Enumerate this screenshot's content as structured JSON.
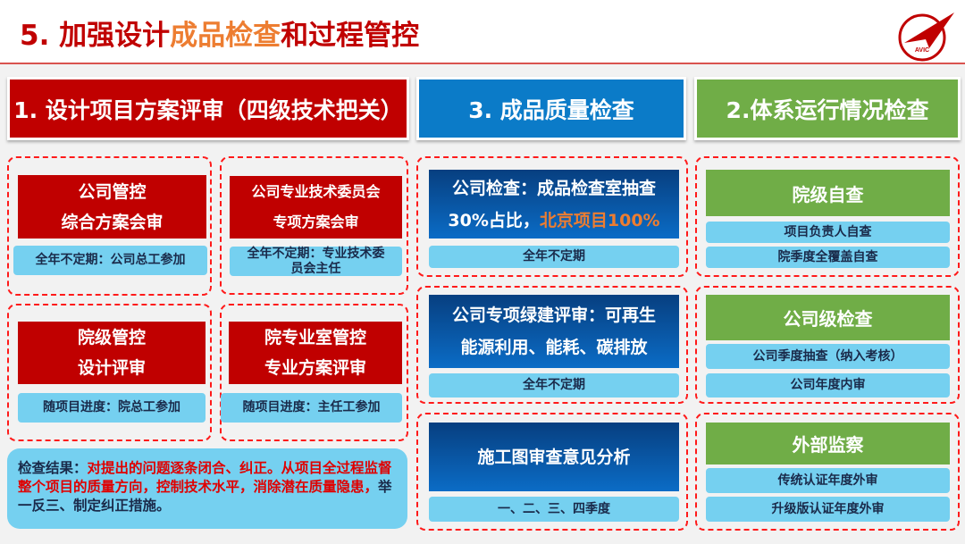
{
  "header": {
    "title_prefix": "5. 加强设计",
    "title_highlight": "成品检查",
    "title_suffix": "和过程管控",
    "logo_text": "AVIC"
  },
  "columns": [
    {
      "title": "1. 设计项目方案评审（四级技术把关）",
      "color": "#c00000"
    },
    {
      "title": "3. 成品质量检查",
      "color": "#0b7bc8"
    },
    {
      "title": "2.体系运行情况检查",
      "color": "#70ad47"
    }
  ],
  "design_review": [
    {
      "line1": "公司管控",
      "line2": "综合方案会审",
      "note": "全年不定期：公司总工参加"
    },
    {
      "line1": "公司专业技术委员会",
      "line2": "专项方案会审",
      "note": "全年不定期：专业技术委员会主任"
    },
    {
      "line1": "院级管控",
      "line2": "设计评审",
      "note": "随项目进度：院总工参加"
    },
    {
      "line1": "院专业室管控",
      "line2": "专业方案评审",
      "note": "随项目进度：主任工参加"
    }
  ],
  "result": {
    "label": "检查结果：",
    "red_text": "对提出的问题逐条闭合、纠正。从项目全过程监督整个项目的质量方向，控制技术水平，消除潜在质量隐患，",
    "dark_text": "举一反三、制定纠正措施。"
  },
  "quality_check": [
    {
      "line1": "公司检查：成品检查室抽查",
      "line2_a": "30%占比，",
      "line2_b": "北京项目100%",
      "note": "全年不定期"
    },
    {
      "line1": "公司专项绿建评审：可再生",
      "line2_a": "能源利用、能耗、碳排放",
      "line2_b": "",
      "note": "全年不定期"
    },
    {
      "line1": "施工图审查意见分析",
      "line2_a": "",
      "line2_b": "",
      "note": "一、二、三、四季度"
    }
  ],
  "system_check": [
    {
      "title": "院级自查",
      "items": [
        "项目负责人自查",
        "院季度全覆盖自查"
      ]
    },
    {
      "title": "公司级检查",
      "items": [
        "公司季度抽查（纳入考核）",
        "公司年度内审"
      ]
    },
    {
      "title": "外部监察",
      "items": [
        "传统认证年度外审",
        "升级版认证年度外审"
      ]
    }
  ],
  "colors": {
    "red": "#c00000",
    "orange": "#ed7d31",
    "blue": "#0b6cc6",
    "green": "#70ad47",
    "light_blue": "#75d0f0",
    "dash": "#ff1a1a"
  }
}
